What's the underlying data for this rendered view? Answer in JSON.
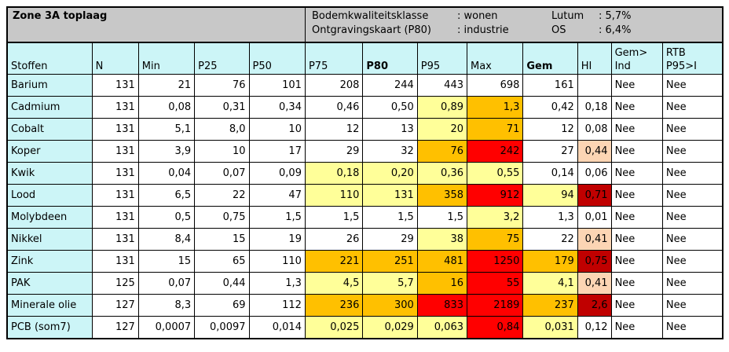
{
  "title": "Zone 3A toplaag",
  "info": {
    "rows": [
      {
        "label": "Bodemkwaliteitsklasse",
        "value": ": wonen",
        "label2": "Lutum",
        "value2": ": 5,7%"
      },
      {
        "label": "Ontgravingskaart (P80)",
        "value": ": industrie",
        "label2": "OS",
        "value2": ": 6,4%"
      }
    ]
  },
  "columns": [
    "Stoffen",
    "N",
    "Min",
    "P25",
    "P50",
    "P75",
    "P80",
    "P95",
    "Max",
    "Gem",
    "HI",
    "Gem>\nInd",
    "RTB\nP95>I"
  ],
  "rows": [
    {
      "name": "Barium",
      "cells": [
        "131",
        "21",
        "76",
        "101",
        "208",
        "244",
        "443",
        "698",
        "161",
        "",
        "Nee",
        "Nee"
      ],
      "colors": [
        "",
        "",
        "",
        "",
        "",
        "",
        "",
        "",
        "",
        "",
        "",
        ""
      ]
    },
    {
      "name": "Cadmium",
      "cells": [
        "131",
        "0,08",
        "0,31",
        "0,34",
        "0,46",
        "0,50",
        "0,89",
        "1,3",
        "0,42",
        "0,18",
        "Nee",
        "Nee"
      ],
      "colors": [
        "",
        "",
        "",
        "",
        "",
        "",
        "yellow",
        "orange",
        "",
        "",
        "",
        ""
      ]
    },
    {
      "name": "Cobalt",
      "cells": [
        "131",
        "5,1",
        "8,0",
        "10",
        "12",
        "13",
        "20",
        "71",
        "12",
        "0,08",
        "Nee",
        "Nee"
      ],
      "colors": [
        "",
        "",
        "",
        "",
        "",
        "",
        "yellow",
        "orange",
        "",
        "",
        "",
        ""
      ]
    },
    {
      "name": "Koper",
      "cells": [
        "131",
        "3,9",
        "10",
        "17",
        "29",
        "32",
        "76",
        "242",
        "27",
        "0,44",
        "Nee",
        "Nee"
      ],
      "colors": [
        "",
        "",
        "",
        "",
        "",
        "",
        "orange",
        "red",
        "",
        "peach",
        "",
        ""
      ]
    },
    {
      "name": "Kwik",
      "cells": [
        "131",
        "0,04",
        "0,07",
        "0,09",
        "0,18",
        "0,20",
        "0,36",
        "0,55",
        "0,14",
        "0,06",
        "Nee",
        "Nee"
      ],
      "colors": [
        "",
        "",
        "",
        "",
        "yellow",
        "yellow",
        "yellow",
        "yellow",
        "",
        "",
        "",
        ""
      ]
    },
    {
      "name": "Lood",
      "cells": [
        "131",
        "6,5",
        "22",
        "47",
        "110",
        "131",
        "358",
        "912",
        "94",
        "0,71",
        "Nee",
        "Nee"
      ],
      "colors": [
        "",
        "",
        "",
        "",
        "yellow",
        "yellow",
        "orange",
        "red",
        "yellow",
        "darkred",
        "",
        ""
      ]
    },
    {
      "name": "Molybdeen",
      "cells": [
        "131",
        "0,5",
        "0,75",
        "1,5",
        "1,5",
        "1,5",
        "1,5",
        "3,2",
        "1,3",
        "0,01",
        "Nee",
        "Nee"
      ],
      "colors": [
        "",
        "",
        "",
        "",
        "",
        "",
        "",
        "yellow",
        "",
        "",
        "",
        ""
      ]
    },
    {
      "name": "Nikkel",
      "cells": [
        "131",
        "8,4",
        "15",
        "19",
        "26",
        "29",
        "38",
        "75",
        "22",
        "0,41",
        "Nee",
        "Nee"
      ],
      "colors": [
        "",
        "",
        "",
        "",
        "",
        "",
        "yellow",
        "orange",
        "",
        "peach",
        "",
        ""
      ]
    },
    {
      "name": "Zink",
      "cells": [
        "131",
        "15",
        "65",
        "110",
        "221",
        "251",
        "481",
        "1250",
        "179",
        "0,75",
        "Nee",
        "Nee"
      ],
      "colors": [
        "",
        "",
        "",
        "",
        "orange",
        "orange",
        "orange",
        "red",
        "orange",
        "darkred",
        "",
        ""
      ]
    },
    {
      "name": "PAK",
      "cells": [
        "125",
        "0,07",
        "0,44",
        "1,3",
        "4,5",
        "5,7",
        "16",
        "55",
        "4,1",
        "0,41",
        "Nee",
        "Nee"
      ],
      "colors": [
        "",
        "",
        "",
        "",
        "yellow",
        "yellow",
        "orange",
        "red",
        "yellow",
        "peach",
        "",
        ""
      ]
    },
    {
      "name": "Minerale olie",
      "cells": [
        "127",
        "8,3",
        "69",
        "112",
        "236",
        "300",
        "833",
        "2189",
        "237",
        "2,6",
        "Nee",
        "Nee"
      ],
      "colors": [
        "",
        "",
        "",
        "",
        "orange",
        "orange",
        "red",
        "red",
        "orange",
        "darkred",
        "",
        ""
      ]
    },
    {
      "name": "PCB (som7)",
      "cells": [
        "127",
        "0,0007",
        "0,0097",
        "0,014",
        "0,025",
        "0,029",
        "0,063",
        "0,84",
        "0,031",
        "0,12",
        "Nee",
        "Nee"
      ],
      "colors": [
        "",
        "",
        "",
        "",
        "yellow",
        "yellow",
        "yellow",
        "red",
        "yellow",
        "",
        "",
        ""
      ]
    }
  ]
}
